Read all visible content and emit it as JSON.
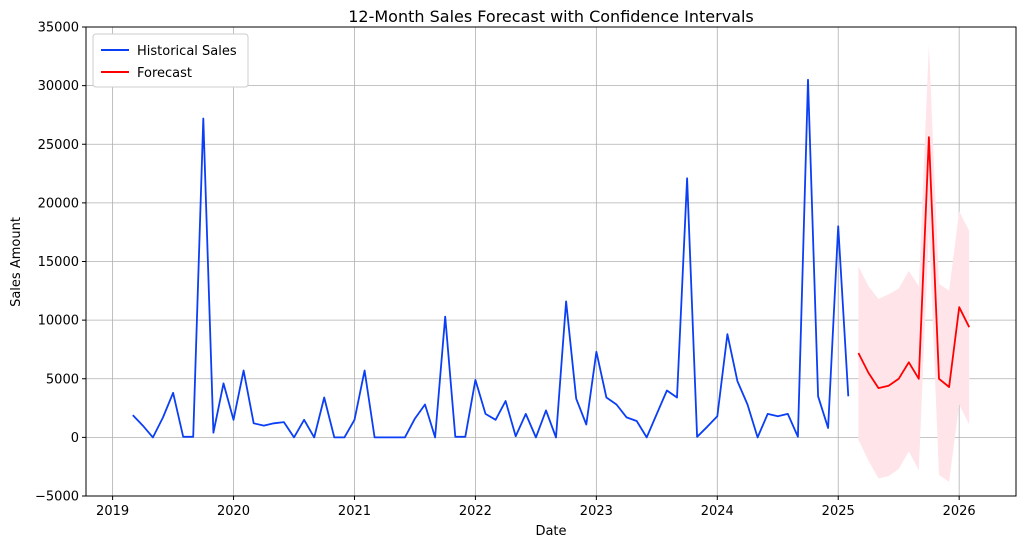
{
  "chart_data": {
    "type": "line",
    "title": "12-Month Sales Forecast with Confidence Intervals",
    "xlabel": "Date",
    "ylabel": "Sales Amount",
    "xlim": [
      2018.78,
      2026.47
    ],
    "ylim": [
      -5000,
      35000
    ],
    "x_ticks": [
      2019,
      2020,
      2021,
      2022,
      2023,
      2024,
      2025,
      2026
    ],
    "x_tick_labels": [
      "2019",
      "2020",
      "2021",
      "2022",
      "2023",
      "2024",
      "2025",
      "2026"
    ],
    "y_ticks": [
      -5000,
      0,
      5000,
      10000,
      15000,
      20000,
      25000,
      30000,
      35000
    ],
    "y_tick_labels": [
      "−5000",
      "0",
      "5000",
      "10000",
      "15000",
      "20000",
      "25000",
      "30000",
      "35000"
    ],
    "grid": true,
    "legend_position": "top-left",
    "series": [
      {
        "name": "Historical Sales",
        "color": "#0b3ff5",
        "points": [
          [
            "2019-03",
            1900
          ],
          [
            "2019-04",
            1000
          ],
          [
            "2019-05",
            0
          ],
          [
            "2019-06",
            1700
          ],
          [
            "2019-07",
            3800
          ],
          [
            "2019-08",
            50
          ],
          [
            "2019-09",
            50
          ],
          [
            "2019-10",
            27200
          ],
          [
            "2019-11",
            400
          ],
          [
            "2019-12",
            4600
          ],
          [
            "2020-01",
            1500
          ],
          [
            "2020-02",
            5700
          ],
          [
            "2020-03",
            1200
          ],
          [
            "2020-04",
            1000
          ],
          [
            "2020-05",
            1200
          ],
          [
            "2020-06",
            1300
          ],
          [
            "2020-07",
            0
          ],
          [
            "2020-08",
            1500
          ],
          [
            "2020-09",
            0
          ],
          [
            "2020-10",
            3400
          ],
          [
            "2020-11",
            0
          ],
          [
            "2020-12",
            0
          ],
          [
            "2021-01",
            1500
          ],
          [
            "2021-02",
            5700
          ],
          [
            "2021-03",
            0
          ],
          [
            "2021-04",
            0
          ],
          [
            "2021-05",
            0
          ],
          [
            "2021-06",
            0
          ],
          [
            "2021-07",
            1600
          ],
          [
            "2021-08",
            2800
          ],
          [
            "2021-09",
            0
          ],
          [
            "2021-10",
            10300
          ],
          [
            "2021-11",
            50
          ],
          [
            "2021-12",
            50
          ],
          [
            "2022-01",
            4900
          ],
          [
            "2022-02",
            2000
          ],
          [
            "2022-03",
            1500
          ],
          [
            "2022-04",
            3100
          ],
          [
            "2022-05",
            100
          ],
          [
            "2022-06",
            2000
          ],
          [
            "2022-07",
            0
          ],
          [
            "2022-08",
            2300
          ],
          [
            "2022-09",
            0
          ],
          [
            "2022-10",
            11600
          ],
          [
            "2022-11",
            3300
          ],
          [
            "2022-12",
            1100
          ],
          [
            "2023-01",
            7300
          ],
          [
            "2023-02",
            3400
          ],
          [
            "2023-03",
            2800
          ],
          [
            "2023-04",
            1700
          ],
          [
            "2023-05",
            1400
          ],
          [
            "2023-06",
            0
          ],
          [
            "2023-07",
            2000
          ],
          [
            "2023-08",
            4000
          ],
          [
            "2023-09",
            3400
          ],
          [
            "2023-10",
            22100
          ],
          [
            "2023-11",
            50
          ],
          [
            "2023-12",
            900
          ],
          [
            "2024-01",
            1800
          ],
          [
            "2024-02",
            8800
          ],
          [
            "2024-03",
            4800
          ],
          [
            "2024-04",
            2800
          ],
          [
            "2024-05",
            0
          ],
          [
            "2024-06",
            2000
          ],
          [
            "2024-07",
            1800
          ],
          [
            "2024-08",
            2000
          ],
          [
            "2024-09",
            50
          ],
          [
            "2024-10",
            30500
          ],
          [
            "2024-11",
            3500
          ],
          [
            "2024-12",
            800
          ],
          [
            "2025-01",
            18000
          ],
          [
            "2025-02",
            3500
          ]
        ]
      },
      {
        "name": "Forecast",
        "color": "#ff0000",
        "points": [
          [
            "2025-03",
            7200
          ],
          [
            "2025-04",
            5500
          ],
          [
            "2025-05",
            4200
          ],
          [
            "2025-06",
            4400
          ],
          [
            "2025-07",
            5000
          ],
          [
            "2025-08",
            6400
          ],
          [
            "2025-09",
            5000
          ],
          [
            "2025-10",
            25600
          ],
          [
            "2025-11",
            5000
          ],
          [
            "2025-12",
            4300
          ],
          [
            "2026-01",
            11100
          ],
          [
            "2026-02",
            9400
          ]
        ],
        "lower": [
          -200,
          -2000,
          -3500,
          -3300,
          -2700,
          -1200,
          -2800,
          17800,
          -3200,
          -3800,
          2800,
          1100
        ],
        "upper": [
          14600,
          12900,
          11800,
          12200,
          12700,
          14200,
          12900,
          33500,
          13100,
          12500,
          19300,
          17600
        ],
        "band_color": "#ffe4ea"
      }
    ]
  }
}
